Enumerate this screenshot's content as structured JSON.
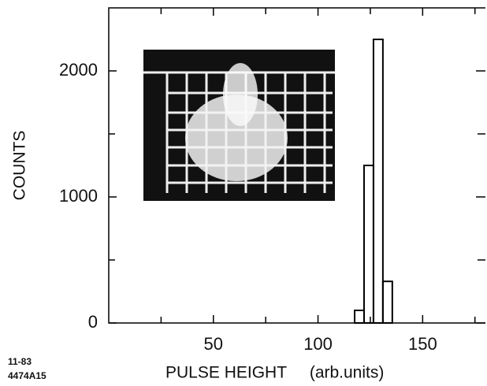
{
  "chart_data": {
    "type": "histogram",
    "xlabel": "PULSE HEIGHT     (arb.units)",
    "ylabel": "COUNTS",
    "footnote_date": "11-83",
    "footnote_id": "4474A15",
    "bins": [
      117.5,
      122,
      126.5,
      131,
      135.5
    ],
    "values": [
      100,
      1250,
      2250,
      330
    ],
    "color": "#000000",
    "xlim": [
      0,
      180
    ],
    "ylim": [
      0,
      2500
    ],
    "xticks": [
      50,
      100,
      150
    ],
    "yticks": [
      0,
      1000,
      2000
    ],
    "x_minor_ticks": [
      25,
      75,
      125,
      175
    ],
    "y_minor_ticks": [
      500,
      1500
    ]
  }
}
